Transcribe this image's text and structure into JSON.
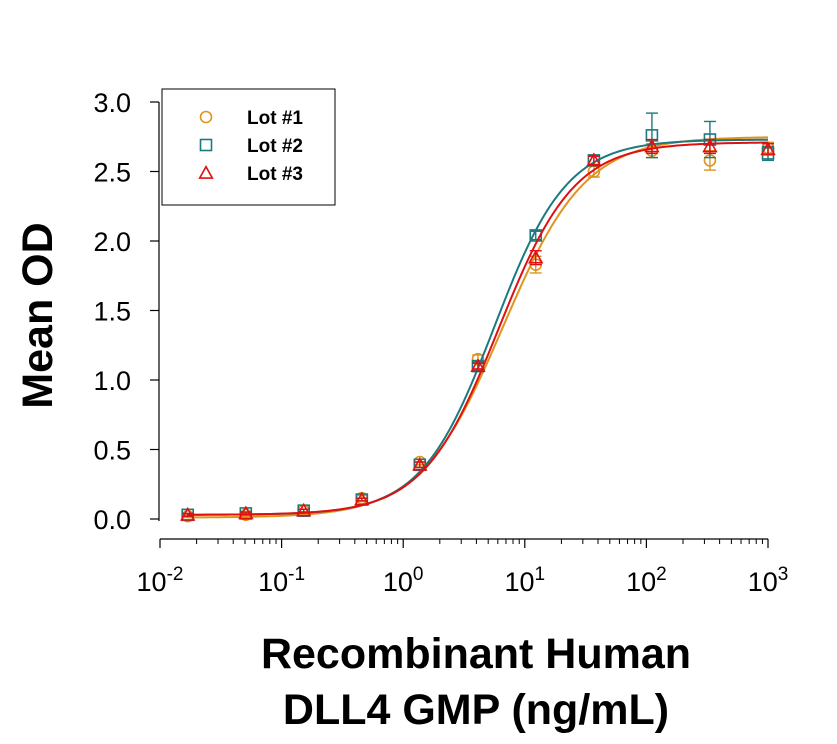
{
  "chart_data": {
    "type": "scatter",
    "title": "",
    "xlabel": [
      "Recombinant Human",
      "DLL4 GMP (ng/mL)"
    ],
    "ylabel": "Mean OD",
    "x_scale": "log",
    "xlim": [
      0.01,
      1000
    ],
    "ylim": [
      0.0,
      3.0
    ],
    "x_ticks": [
      {
        "value": 0.01,
        "base": "10",
        "exp": "-2"
      },
      {
        "value": 0.1,
        "base": "10",
        "exp": "-1"
      },
      {
        "value": 1,
        "base": "10",
        "exp": "0"
      },
      {
        "value": 10,
        "base": "10",
        "exp": "1"
      },
      {
        "value": 100,
        "base": "10",
        "exp": "2"
      },
      {
        "value": 1000,
        "base": "10",
        "exp": "3"
      }
    ],
    "y_ticks": [
      {
        "value": 0.0,
        "label": "0.0"
      },
      {
        "value": 0.5,
        "label": "0.5"
      },
      {
        "value": 1.0,
        "label": "1.0"
      },
      {
        "value": 1.5,
        "label": "1.5"
      },
      {
        "value": 2.0,
        "label": "2.0"
      },
      {
        "value": 2.5,
        "label": "2.5"
      },
      {
        "value": 3.0,
        "label": "3.0"
      }
    ],
    "grid": false,
    "legend_position": "top-left",
    "x": [
      0.0169,
      0.0508,
      0.152,
      0.457,
      1.37,
      4.12,
      12.3,
      37.0,
      111,
      333,
      1000
    ],
    "series": [
      {
        "name": "Lot #1",
        "marker": "circle",
        "color": "#E0941C",
        "values": [
          0.02,
          0.03,
          0.06,
          0.15,
          0.41,
          1.15,
          1.83,
          2.5,
          2.65,
          2.58,
          2.67
        ],
        "errors": [
          0.01,
          0.01,
          0.01,
          0.02,
          0.02,
          0.03,
          0.06,
          0.04,
          0.05,
          0.07,
          0.04
        ],
        "fit": {
          "bottom": 0.01,
          "top": 2.75,
          "ec50": 6.6,
          "hill": 1.28
        }
      },
      {
        "name": "Lot #2",
        "marker": "square",
        "color": "#1A7A80",
        "values": [
          0.03,
          0.04,
          0.06,
          0.14,
          0.39,
          1.1,
          2.04,
          2.58,
          2.76,
          2.73,
          2.63
        ],
        "errors": [
          0.01,
          0.01,
          0.01,
          0.01,
          0.02,
          0.03,
          0.03,
          0.03,
          0.16,
          0.13,
          0.05
        ],
        "fit": {
          "bottom": 0.03,
          "top": 2.73,
          "ec50": 5.6,
          "hill": 1.45
        }
      },
      {
        "name": "Lot #3",
        "marker": "triangle",
        "color": "#E01010",
        "values": [
          0.03,
          0.04,
          0.06,
          0.14,
          0.39,
          1.1,
          1.88,
          2.58,
          2.68,
          2.68,
          2.66
        ],
        "errors": [
          0.01,
          0.01,
          0.01,
          0.01,
          0.02,
          0.02,
          0.05,
          0.03,
          0.05,
          0.05,
          0.04
        ],
        "fit": {
          "bottom": 0.03,
          "top": 2.71,
          "ec50": 6.1,
          "hill": 1.4
        }
      }
    ]
  }
}
